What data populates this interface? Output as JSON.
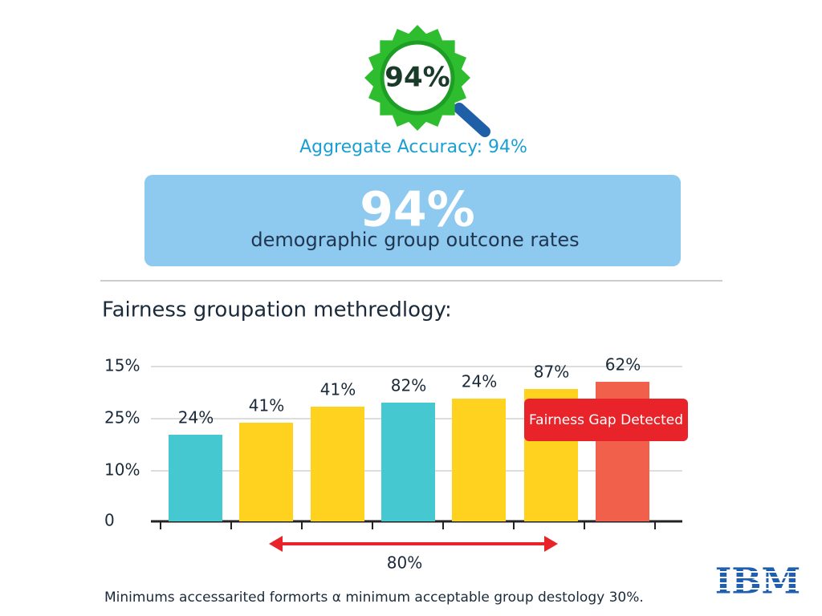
{
  "badge": {
    "label": "94%"
  },
  "headline": "Aggregate Accuracy: 94%",
  "panel": {
    "big": "94%",
    "caption": "demographic group outcone rates"
  },
  "section_title": "Fairness groupation methredlogy:",
  "chart": {
    "tick_labels": [
      "15%",
      "25%",
      "10%",
      "0"
    ],
    "bars": [
      {
        "label": "24%"
      },
      {
        "label": "41%"
      },
      {
        "label": "41%"
      },
      {
        "label": "82%"
      },
      {
        "label": "24%"
      },
      {
        "label": "87%"
      },
      {
        "label": "62%"
      }
    ],
    "alert": "Fairness Gap Detected",
    "span_label": "80%"
  },
  "footer": "Minimums accessarited formorts α minimum acceptable group destology 30%.",
  "logo": "IBM"
}
